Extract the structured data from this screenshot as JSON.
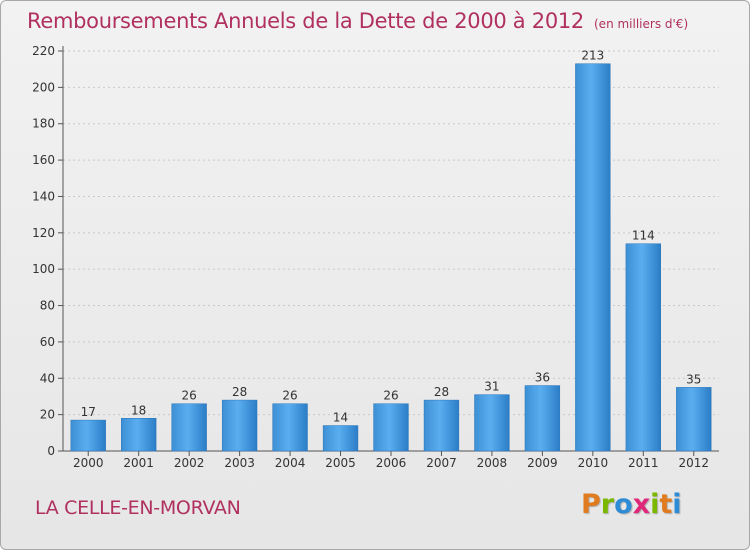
{
  "header": {
    "title": "Remboursements Annuels de la Dette de 2000 à 2012",
    "unit": "(en milliers d'€)"
  },
  "footer": {
    "commune": "LA CELLE-EN-MORVAN"
  },
  "logo": {
    "letters": [
      "P",
      "r",
      "o",
      "x",
      "i",
      "t",
      "i"
    ],
    "colors": [
      "#e07b20",
      "#7ab800",
      "#2e8bd6",
      "#e0287a",
      "#7ab800",
      "#e07b20",
      "#2e8bd6"
    ]
  },
  "chart_data": {
    "type": "bar",
    "title": "Remboursements Annuels de la Dette de 2000 à 2012",
    "categories": [
      "2000",
      "2001",
      "2002",
      "2003",
      "2004",
      "2005",
      "2006",
      "2007",
      "2008",
      "2009",
      "2010",
      "2011",
      "2012"
    ],
    "values": [
      17,
      18,
      26,
      28,
      26,
      14,
      26,
      28,
      31,
      36,
      213,
      114,
      35
    ],
    "data_labels": [
      "17",
      "18",
      "26",
      "28",
      "26",
      "14",
      "26",
      "28",
      "31",
      "36",
      "213",
      "114",
      "35"
    ],
    "ylim": [
      0,
      220
    ],
    "yticks": [
      0,
      20,
      40,
      60,
      80,
      100,
      120,
      140,
      160,
      180,
      200,
      220
    ],
    "grid": true,
    "bar_color": "#4a9fe0",
    "bar_color_dark": "#2a7cc4"
  }
}
